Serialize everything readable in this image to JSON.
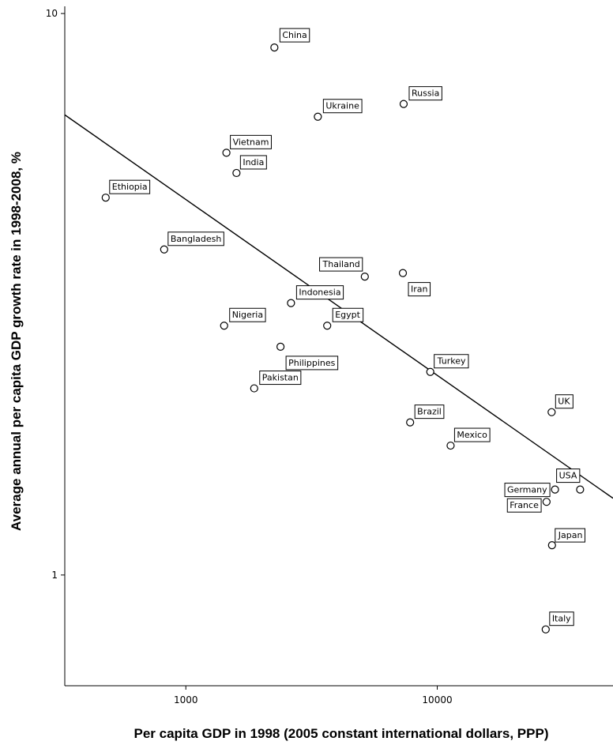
{
  "chart_data": {
    "type": "scatter",
    "xlabel": "Per capita GDP in 1998 (2005 constant international dollars, PPP)",
    "ylabel": "Average annual per capita GDP growth rate in 1998-2008, %",
    "x_scale": "log",
    "y_scale": "log",
    "xlim": [
      330,
      50000
    ],
    "ylim": [
      0.635,
      10.3
    ],
    "x_ticks": [
      1000,
      10000
    ],
    "x_tick_labels": [
      "1000",
      "10000"
    ],
    "y_ticks": [
      1,
      10
    ],
    "y_tick_labels": [
      "1",
      "10"
    ],
    "grid": false,
    "legend": "none",
    "trend_line": [
      {
        "x": 330,
        "y": 6.6
      },
      {
        "x": 50000,
        "y": 1.37
      }
    ],
    "points": [
      {
        "label": "China",
        "x": 2250,
        "y": 8.7
      },
      {
        "label": "Russia",
        "x": 7350,
        "y": 6.9
      },
      {
        "label": "Ukraine",
        "x": 3350,
        "y": 6.55
      },
      {
        "label": "Vietnam",
        "x": 1450,
        "y": 5.65
      },
      {
        "label": "India",
        "x": 1590,
        "y": 5.2
      },
      {
        "label": "Ethiopia",
        "x": 480,
        "y": 4.7
      },
      {
        "label": "Bangladesh",
        "x": 820,
        "y": 3.8
      },
      {
        "label": "Thailand",
        "x": 5150,
        "y": 3.4
      },
      {
        "label": "Iran",
        "x": 7300,
        "y": 3.45
      },
      {
        "label": "Indonesia",
        "x": 2620,
        "y": 3.05
      },
      {
        "label": "Nigeria",
        "x": 1420,
        "y": 2.78
      },
      {
        "label": "Egypt",
        "x": 3650,
        "y": 2.78
      },
      {
        "label": "Philippines",
        "x": 2380,
        "y": 2.55
      },
      {
        "label": "Turkey",
        "x": 9380,
        "y": 2.3
      },
      {
        "label": "Pakistan",
        "x": 1870,
        "y": 2.15
      },
      {
        "label": "UK",
        "x": 28500,
        "y": 1.95
      },
      {
        "label": "Brazil",
        "x": 7800,
        "y": 1.87
      },
      {
        "label": "Mexico",
        "x": 11300,
        "y": 1.7
      },
      {
        "label": "USA",
        "x": 37000,
        "y": 1.42
      },
      {
        "label": "Germany",
        "x": 29400,
        "y": 1.42
      },
      {
        "label": "France",
        "x": 27200,
        "y": 1.35
      },
      {
        "label": "Japan",
        "x": 28600,
        "y": 1.13
      },
      {
        "label": "Italy",
        "x": 27000,
        "y": 0.8
      }
    ]
  }
}
